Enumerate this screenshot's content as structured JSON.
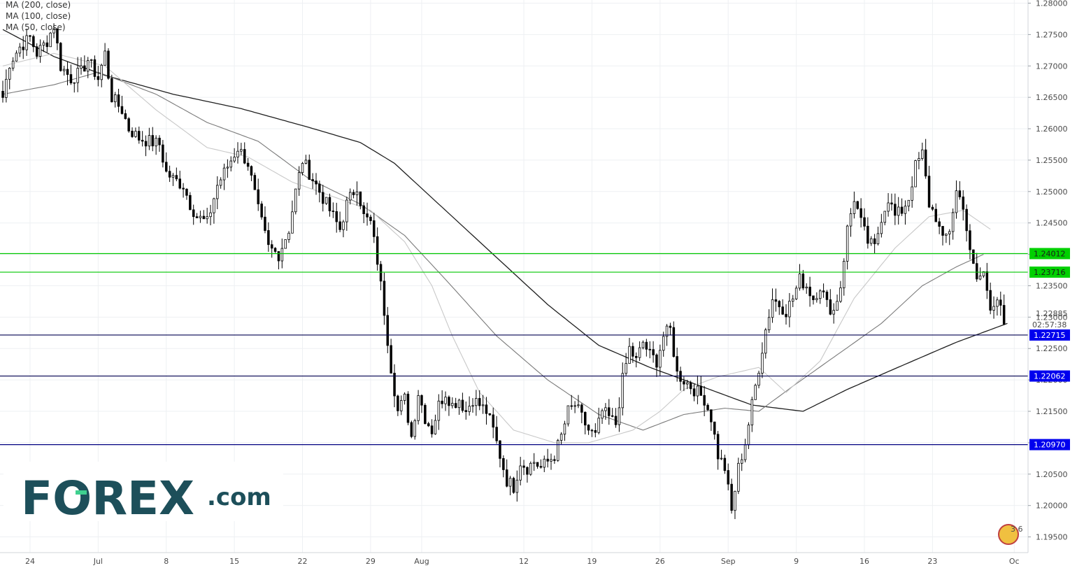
{
  "chart_data": {
    "type": "candlestick",
    "instrument_note": "",
    "legend": [
      {
        "label": "MA (200, close)",
        "color": "#1f1f1f"
      },
      {
        "label": "MA (100, close)",
        "color": "#7a7a7a"
      },
      {
        "label": "MA (50, close)",
        "color": "#c8c8c8"
      }
    ],
    "y_axis": {
      "range": [
        1.1925,
        1.2805
      ],
      "ticks": [
        "1.28000",
        "1.27500",
        "1.27000",
        "1.26500",
        "1.26000",
        "1.25500",
        "1.25000",
        "1.24500",
        "1.24000",
        "1.23500",
        "1.23000",
        "1.22500",
        "1.22000",
        "1.21500",
        "1.21000",
        "1.20500",
        "1.20000",
        "1.19500"
      ],
      "tick_values": [
        1.28,
        1.275,
        1.27,
        1.265,
        1.26,
        1.255,
        1.25,
        1.245,
        1.24,
        1.235,
        1.23,
        1.225,
        1.22,
        1.215,
        1.21,
        1.205,
        1.2,
        1.195
      ]
    },
    "x_axis": {
      "labels": [
        {
          "text": "24",
          "bar": 8
        },
        {
          "text": "Jul",
          "bar": 28
        },
        {
          "text": "8",
          "bar": 48
        },
        {
          "text": "15",
          "bar": 68
        },
        {
          "text": "22",
          "bar": 88
        },
        {
          "text": "29",
          "bar": 108
        },
        {
          "text": "Aug",
          "bar": 123
        },
        {
          "text": "12",
          "bar": 153
        },
        {
          "text": "19",
          "bar": 173
        },
        {
          "text": "26",
          "bar": 193
        },
        {
          "text": "Sep",
          "bar": 213
        },
        {
          "text": "9",
          "bar": 233
        },
        {
          "text": "16",
          "bar": 253
        },
        {
          "text": "23",
          "bar": 273
        },
        {
          "text": "Oc",
          "bar": 297
        }
      ],
      "bar_count": 300
    },
    "current_price": {
      "value": 1.22885,
      "label": "1.22885",
      "countdown": "02:57:38"
    },
    "levels": [
      {
        "value": 1.24012,
        "label": "1.24012",
        "color": "#00c800",
        "bg": "#00d000",
        "text_color": "#1a1a1a"
      },
      {
        "value": 1.23716,
        "label": "1.23716",
        "color": "#00c800",
        "bg": "#00d000",
        "text_color": "#1a1a1a"
      },
      {
        "value": 1.22715,
        "label": "1.22715",
        "color": "#000050",
        "bg": "#0000ee",
        "text_color": "#ffffff"
      },
      {
        "value": 1.22062,
        "label": "1.22062",
        "color": "#000050",
        "bg": "#0000ee",
        "text_color": "#ffffff"
      },
      {
        "value": 1.2097,
        "label": "1.20970",
        "color": "#000080",
        "bg": "#0000ee",
        "text_color": "#ffffff"
      }
    ],
    "price_path": [
      [
        0,
        1.265
      ],
      [
        2,
        1.2705
      ],
      [
        5,
        1.273
      ],
      [
        8,
        1.2745
      ],
      [
        10,
        1.272
      ],
      [
        13,
        1.274
      ],
      [
        15,
        1.2765
      ],
      [
        17,
        1.27
      ],
      [
        20,
        1.268
      ],
      [
        23,
        1.269
      ],
      [
        25,
        1.271
      ],
      [
        28,
        1.268
      ],
      [
        30,
        1.272
      ],
      [
        32,
        1.265
      ],
      [
        35,
        1.263
      ],
      [
        37,
        1.26
      ],
      [
        40,
        1.2585
      ],
      [
        43,
        1.258
      ],
      [
        46,
        1.2575
      ],
      [
        48,
        1.253
      ],
      [
        50,
        1.252
      ],
      [
        53,
        1.251
      ],
      [
        55,
        1.248
      ],
      [
        57,
        1.246
      ],
      [
        60,
        1.245
      ],
      [
        63,
        1.251
      ],
      [
        66,
        1.254
      ],
      [
        69,
        1.257
      ],
      [
        72,
        1.2545
      ],
      [
        75,
        1.247
      ],
      [
        78,
        1.241
      ],
      [
        81,
        1.24
      ],
      [
        84,
        1.244
      ],
      [
        86,
        1.25
      ],
      [
        88,
        1.255
      ],
      [
        90,
        1.253
      ],
      [
        93,
        1.25
      ],
      [
        96,
        1.247
      ],
      [
        99,
        1.244
      ],
      [
        101,
        1.248
      ],
      [
        104,
        1.251
      ],
      [
        106,
        1.246
      ],
      [
        108,
        1.245
      ],
      [
        110,
        1.239
      ],
      [
        112,
        1.231
      ],
      [
        114,
        1.222
      ],
      [
        116,
        1.215
      ],
      [
        118,
        1.217
      ],
      [
        120,
        1.211
      ],
      [
        122,
        1.218
      ],
      [
        124,
        1.214
      ],
      [
        126,
        1.212
      ],
      [
        128,
        1.216
      ],
      [
        130,
        1.218
      ],
      [
        132,
        1.216
      ],
      [
        134,
        1.217
      ],
      [
        136,
        1.215
      ],
      [
        138,
        1.217
      ],
      [
        140,
        1.216
      ],
      [
        142,
        1.215
      ],
      [
        144,
        1.212
      ],
      [
        146,
        1.208
      ],
      [
        148,
        1.204
      ],
      [
        150,
        1.203
      ],
      [
        152,
        1.207
      ],
      [
        154,
        1.206
      ],
      [
        156,
        1.207
      ],
      [
        158,
        1.206
      ],
      [
        160,
        1.207
      ],
      [
        162,
        1.208
      ],
      [
        164,
        1.211
      ],
      [
        166,
        1.215
      ],
      [
        168,
        1.216
      ],
      [
        170,
        1.214
      ],
      [
        172,
        1.212
      ],
      [
        174,
        1.211
      ],
      [
        176,
        1.215
      ],
      [
        178,
        1.214
      ],
      [
        180,
        1.213
      ],
      [
        182,
        1.22
      ],
      [
        184,
        1.225
      ],
      [
        186,
        1.223
      ],
      [
        188,
        1.226
      ],
      [
        190,
        1.224
      ],
      [
        192,
        1.223
      ],
      [
        194,
        1.227
      ],
      [
        196,
        1.228
      ],
      [
        198,
        1.221
      ],
      [
        200,
        1.22
      ],
      [
        202,
        1.219
      ],
      [
        204,
        1.218
      ],
      [
        206,
        1.217
      ],
      [
        208,
        1.214
      ],
      [
        210,
        1.208
      ],
      [
        212,
        1.206
      ],
      [
        214,
        1.199
      ],
      [
        216,
        1.206
      ],
      [
        218,
        1.21
      ],
      [
        220,
        1.216
      ],
      [
        222,
        1.222
      ],
      [
        224,
        1.228
      ],
      [
        226,
        1.233
      ],
      [
        228,
        1.232
      ],
      [
        230,
        1.231
      ],
      [
        232,
        1.233
      ],
      [
        234,
        1.236
      ],
      [
        236,
        1.235
      ],
      [
        238,
        1.233
      ],
      [
        240,
        1.235
      ],
      [
        242,
        1.232
      ],
      [
        244,
        1.231
      ],
      [
        246,
        1.235
      ],
      [
        248,
        1.244
      ],
      [
        250,
        1.249
      ],
      [
        252,
        1.245
      ],
      [
        254,
        1.242
      ],
      [
        256,
        1.241
      ],
      [
        258,
        1.246
      ],
      [
        260,
        1.249
      ],
      [
        262,
        1.246
      ],
      [
        264,
        1.247
      ],
      [
        266,
        1.249
      ],
      [
        268,
        1.254
      ],
      [
        270,
        1.256
      ],
      [
        272,
        1.248
      ],
      [
        274,
        1.246
      ],
      [
        276,
        1.242
      ],
      [
        278,
        1.244
      ],
      [
        280,
        1.25
      ],
      [
        282,
        1.248
      ],
      [
        284,
        1.24
      ],
      [
        286,
        1.236
      ],
      [
        288,
        1.237
      ],
      [
        290,
        1.232
      ],
      [
        292,
        1.233
      ],
      [
        294,
        1.2289
      ]
    ],
    "ma_paths": {
      "ma200": [
        [
          0,
          1.2758
        ],
        [
          15,
          1.2715
        ],
        [
          30,
          1.2685
        ],
        [
          50,
          1.2655
        ],
        [
          70,
          1.2632
        ],
        [
          90,
          1.2602
        ],
        [
          105,
          1.2578
        ],
        [
          115,
          1.2545
        ],
        [
          130,
          1.247
        ],
        [
          145,
          1.2395
        ],
        [
          160,
          1.232
        ],
        [
          175,
          1.2255
        ],
        [
          190,
          1.222
        ],
        [
          205,
          1.219
        ],
        [
          220,
          1.216
        ],
        [
          235,
          1.215
        ],
        [
          248,
          1.2185
        ],
        [
          265,
          1.2225
        ],
        [
          280,
          1.226
        ],
        [
          295,
          1.229
        ]
      ],
      "ma100": [
        [
          0,
          1.2655
        ],
        [
          15,
          1.267
        ],
        [
          28,
          1.269
        ],
        [
          45,
          1.2655
        ],
        [
          60,
          1.261
        ],
        [
          75,
          1.258
        ],
        [
          90,
          1.252
        ],
        [
          105,
          1.248
        ],
        [
          118,
          1.243
        ],
        [
          130,
          1.236
        ],
        [
          145,
          1.227
        ],
        [
          160,
          1.22
        ],
        [
          175,
          1.2145
        ],
        [
          188,
          1.212
        ],
        [
          200,
          1.2145
        ],
        [
          212,
          1.2155
        ],
        [
          222,
          1.215
        ],
        [
          232,
          1.219
        ],
        [
          245,
          1.224
        ],
        [
          258,
          1.229
        ],
        [
          270,
          1.235
        ],
        [
          280,
          1.238
        ],
        [
          288,
          1.24
        ]
      ],
      "ma50": [
        [
          0,
          1.27
        ],
        [
          15,
          1.272
        ],
        [
          30,
          1.27
        ],
        [
          45,
          1.263
        ],
        [
          60,
          1.257
        ],
        [
          72,
          1.2555
        ],
        [
          85,
          1.2515
        ],
        [
          98,
          1.249
        ],
        [
          108,
          1.247
        ],
        [
          118,
          1.242
        ],
        [
          126,
          1.235
        ],
        [
          132,
          1.227
        ],
        [
          140,
          1.218
        ],
        [
          150,
          1.212
        ],
        [
          162,
          1.21
        ],
        [
          172,
          1.21
        ],
        [
          185,
          1.212
        ],
        [
          193,
          1.215
        ],
        [
          200,
          1.2185
        ],
        [
          210,
          1.2205
        ],
        [
          222,
          1.222
        ],
        [
          230,
          1.218
        ],
        [
          240,
          1.223
        ],
        [
          250,
          1.233
        ],
        [
          262,
          1.241
        ],
        [
          272,
          1.246
        ],
        [
          282,
          1.247
        ],
        [
          290,
          1.244
        ]
      ]
    }
  },
  "logo": {
    "brand": "FOREX",
    "suffix": ".com",
    "color": "#1d4f5a",
    "accent": "#3fd08f"
  },
  "badge": {
    "digits": "3 6"
  }
}
